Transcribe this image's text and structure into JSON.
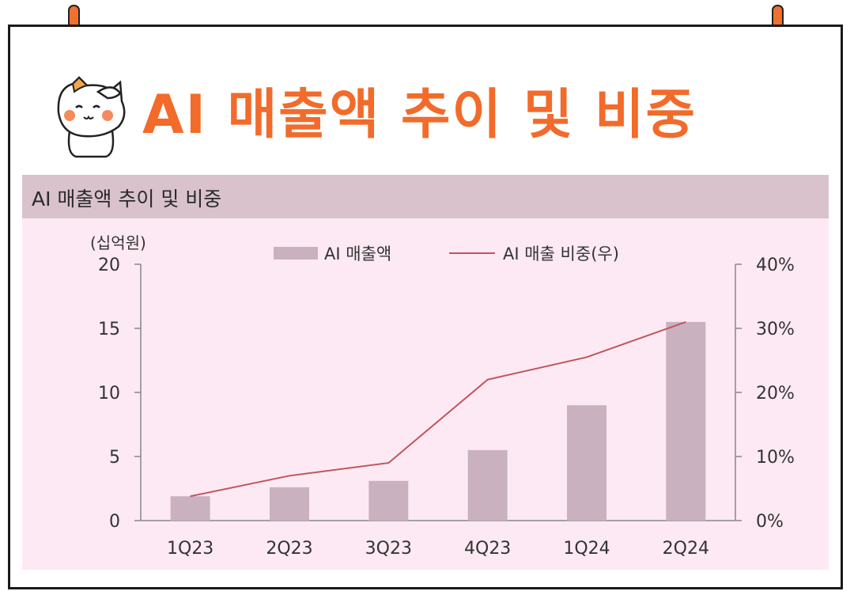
{
  "page": {
    "title": "AI 매출액 추이 및 비중",
    "chart_header": "AI 매출액 추이 및 비중"
  },
  "colors": {
    "accent": "#f26b2a",
    "bar": "#c9b1bf",
    "line": "#c0555d",
    "header_band": "#d9c2cc",
    "plot_bg": "#fde9f3"
  },
  "chart_data": {
    "type": "bar",
    "title": "AI 매출액 추이 및 비중",
    "categories": [
      "1Q23",
      "2Q23",
      "3Q23",
      "4Q23",
      "1Q24",
      "2Q24"
    ],
    "left_axis": {
      "unit_label": "(십억원)",
      "ylim": [
        0,
        20
      ],
      "ticks": [
        "0",
        "5",
        "10",
        "15",
        "20"
      ]
    },
    "right_axis": {
      "ylim": [
        0,
        40
      ],
      "ticks": [
        "0%",
        "10%",
        "20%",
        "30%",
        "40%"
      ]
    },
    "series": [
      {
        "name": "AI 매출액",
        "type": "bar",
        "axis": "left",
        "values": [
          1.9,
          2.6,
          3.1,
          5.5,
          9.0,
          15.5
        ]
      },
      {
        "name": "AI 매출 비중(우)",
        "type": "line",
        "axis": "right",
        "values": [
          3.8,
          7.0,
          9.0,
          22.0,
          25.5,
          31.0
        ]
      }
    ],
    "legend_position": "top-center",
    "grid": false
  }
}
